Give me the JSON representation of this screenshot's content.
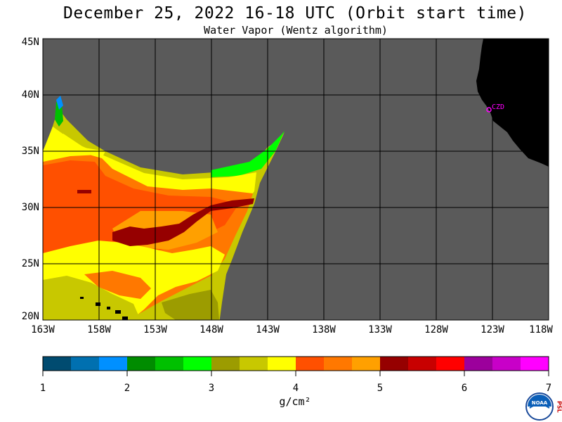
{
  "header": {
    "title": "December 25, 2022  16-18 UTC  (Orbit start time)",
    "subtitle": "Water Vapor (Wentz algorithm)"
  },
  "map": {
    "lat_labels": [
      "45N",
      "40N",
      "35N",
      "30N",
      "25N",
      "20N"
    ],
    "lon_labels": [
      "163W",
      "158W",
      "153W",
      "148W",
      "143W",
      "138W",
      "133W",
      "128W",
      "123W",
      "118W"
    ],
    "station_label": "CZD",
    "colors": {
      "background": "#ffffff",
      "ocean": "#5a5a5a",
      "land": "#000000",
      "grid": "#000000",
      "station": "#ff00ff"
    }
  },
  "colorbar": {
    "tick_labels": [
      "1",
      "2",
      "3",
      "4",
      "5",
      "6",
      "7"
    ],
    "unit": "g/cm²",
    "colors": [
      "#004b70",
      "#0070b0",
      "#0090ff",
      "#008c00",
      "#00c000",
      "#00ff00",
      "#9c9c00",
      "#c8c800",
      "#ffff00",
      "#ff5000",
      "#ff7800",
      "#ffa000",
      "#960000",
      "#c80000",
      "#ff0000",
      "#9c009c",
      "#c800c8",
      "#ff00ff"
    ]
  },
  "logo": {
    "text": "NOAA",
    "side_text": "PSL"
  }
}
